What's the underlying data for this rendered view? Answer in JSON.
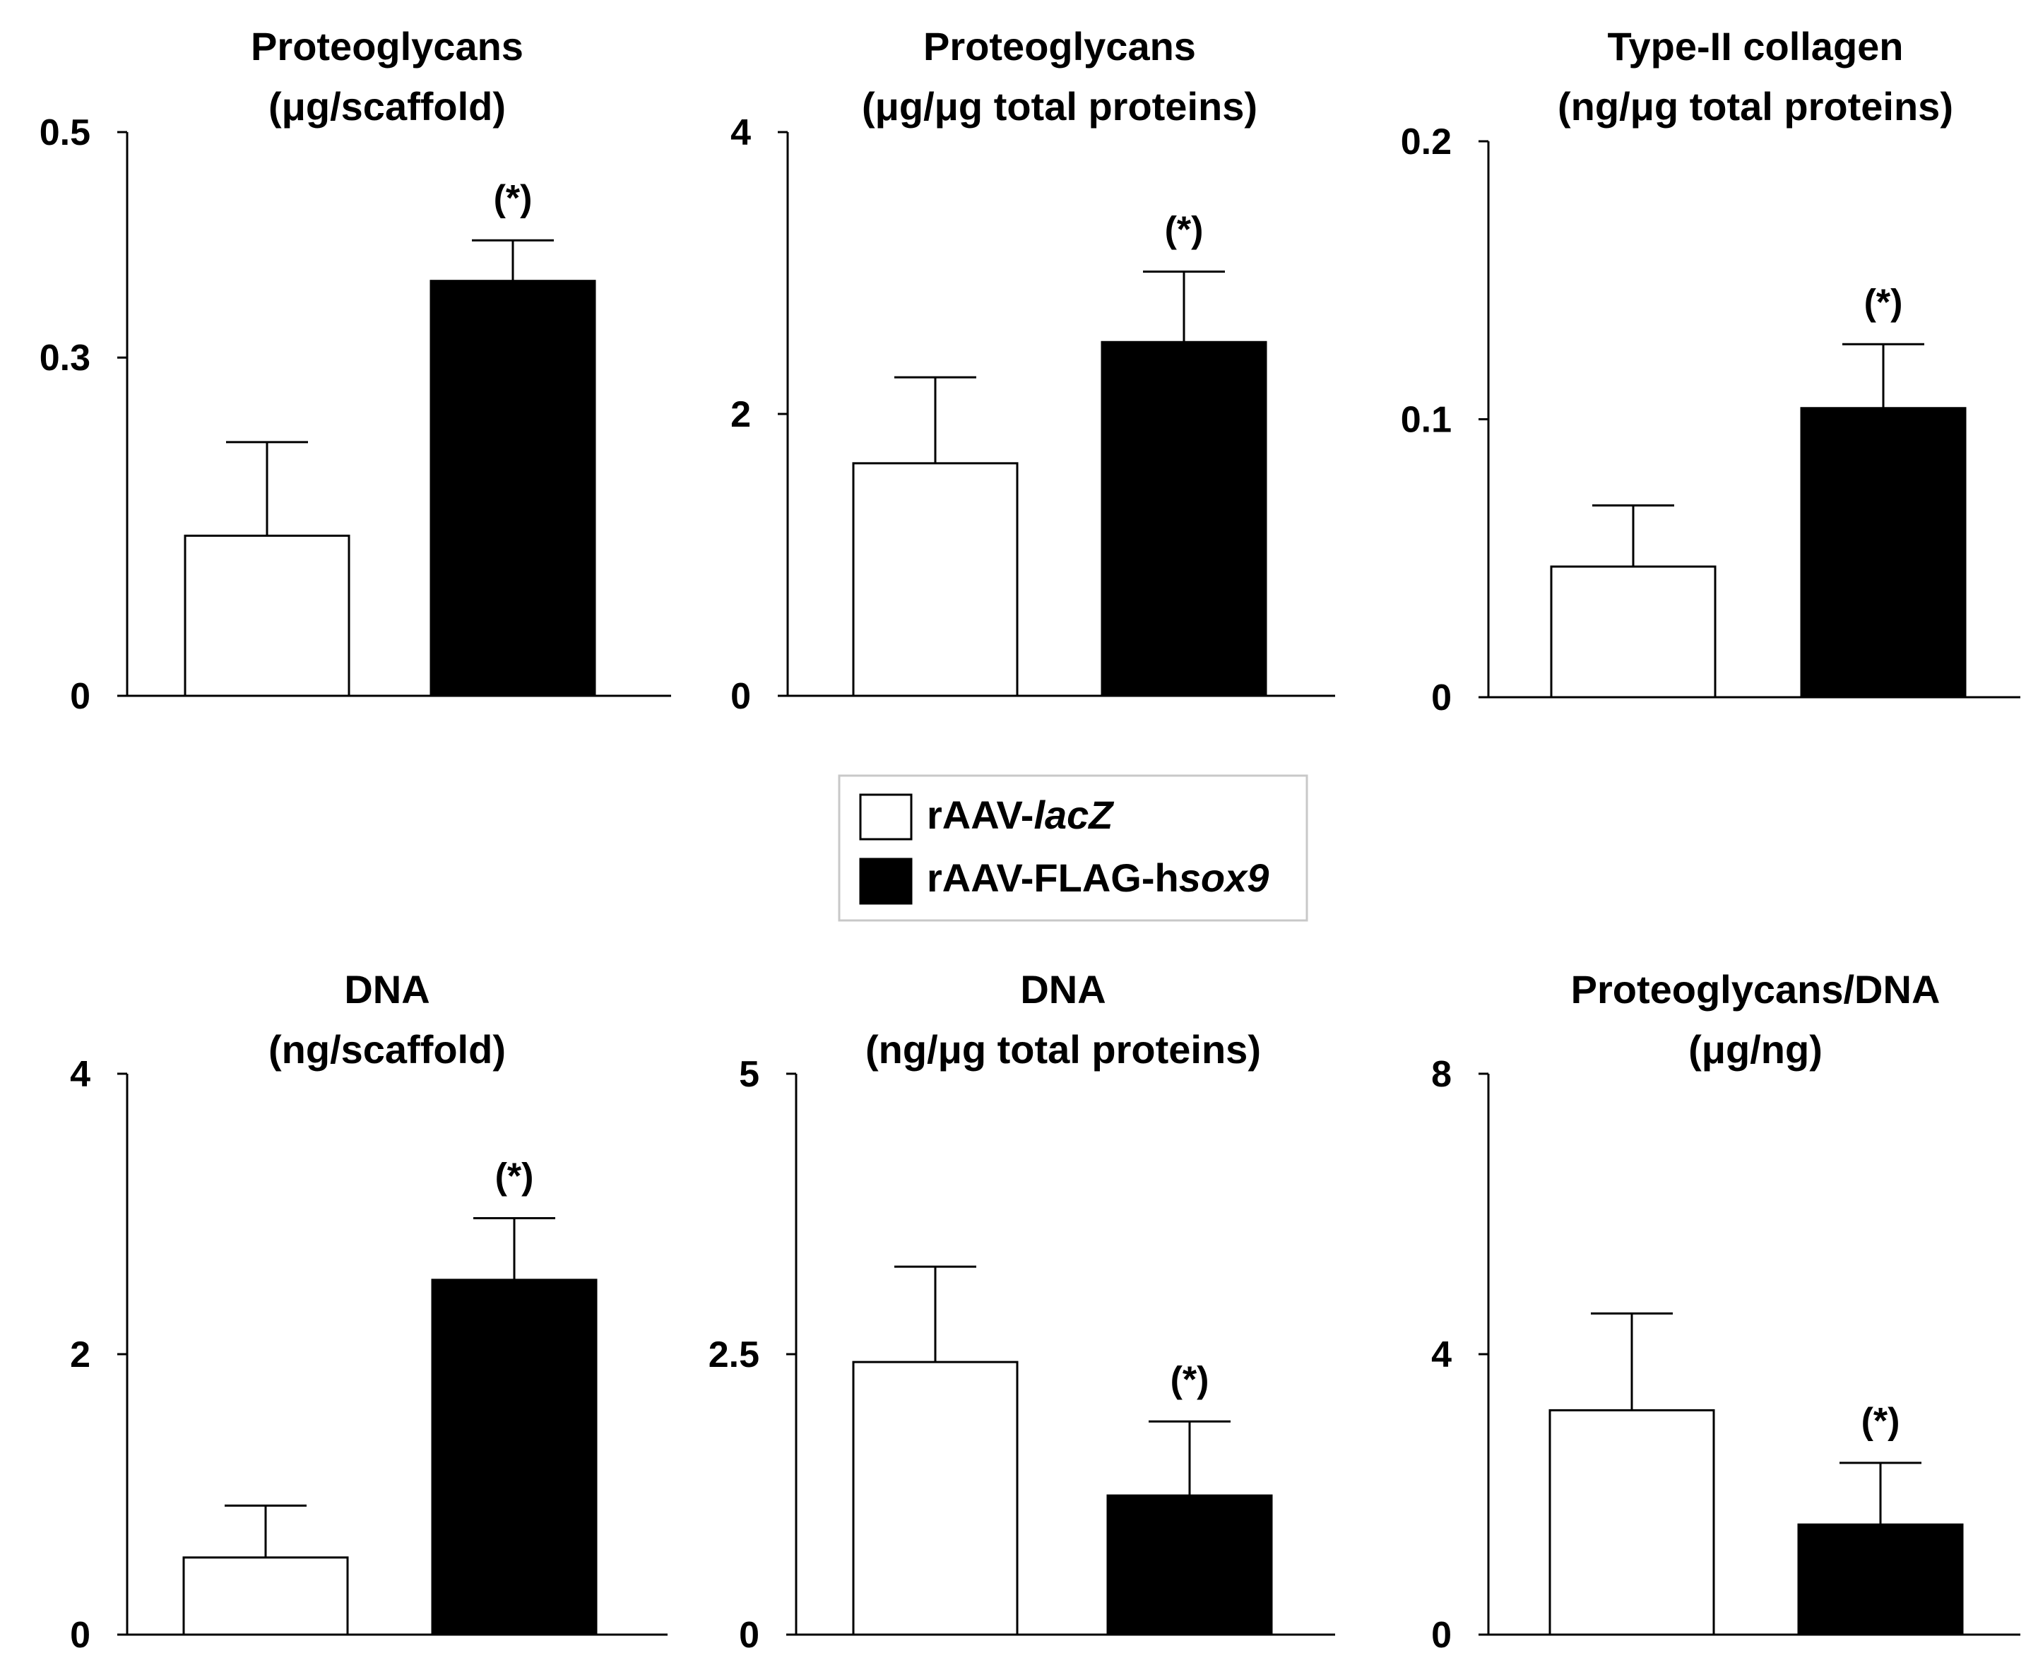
{
  "colors": {
    "white_bar": "#ffffff",
    "black_bar": "#000000",
    "axis": "#000000"
  },
  "legend": {
    "entries": [
      {
        "prefix": "rAAV-",
        "italic": "lacZ",
        "suffix": "",
        "color": "#ffffff"
      },
      {
        "prefix": "rAAV-FLAG-h",
        "italic": "sox9",
        "suffix": "",
        "color": "#000000"
      }
    ]
  },
  "chart_data": [
    {
      "type": "bar",
      "title": [
        "Proteoglycans",
        "(μg/scaffold)"
      ],
      "ylim": [
        0,
        0.5
      ],
      "yticks": [
        0,
        0.3,
        0.5
      ],
      "ytick_labels": [
        "0",
        "0.3",
        "0.5"
      ],
      "categories": [
        "rAAV-lacZ",
        "rAAV-FLAG-hsox9"
      ],
      "values": [
        0.142,
        0.368
      ],
      "errors": [
        0.083,
        0.036
      ],
      "significance": [
        "",
        "(*)"
      ]
    },
    {
      "type": "bar",
      "title": [
        "Proteoglycans",
        "(μg/μg total proteins)"
      ],
      "ylim": [
        0,
        4
      ],
      "yticks": [
        0,
        2,
        4
      ],
      "ytick_labels": [
        "0",
        "2",
        "4"
      ],
      "categories": [
        "rAAV-lacZ",
        "rAAV-FLAG-hsox9"
      ],
      "values": [
        1.65,
        2.51
      ],
      "errors": [
        0.61,
        0.5
      ],
      "significance": [
        "",
        "(*)"
      ]
    },
    {
      "type": "bar",
      "title": [
        "Type-II collagen",
        "(ng/μg total proteins)"
      ],
      "ylim": [
        0,
        0.2
      ],
      "yticks": [
        0,
        0.1,
        0.2
      ],
      "ytick_labels": [
        "0",
        "0.1",
        "0.2"
      ],
      "categories": [
        "rAAV-lacZ",
        "rAAV-FLAG-hsox9"
      ],
      "values": [
        0.047,
        0.104
      ],
      "errors": [
        0.022,
        0.023
      ],
      "significance": [
        "",
        "(*)"
      ]
    },
    {
      "type": "bar",
      "title": [
        "DNA",
        "(ng/scaffold)"
      ],
      "ylim": [
        0,
        4
      ],
      "yticks": [
        0,
        2,
        4
      ],
      "ytick_labels": [
        "0",
        "2",
        "4"
      ],
      "categories": [
        "rAAV-lacZ",
        "rAAV-FLAG-hsox9"
      ],
      "values": [
        0.55,
        2.53
      ],
      "errors": [
        0.37,
        0.44
      ],
      "significance": [
        "",
        "(*)"
      ]
    },
    {
      "type": "bar",
      "title": [
        "DNA",
        "(ng/μg total proteins)"
      ],
      "ylim": [
        0,
        5
      ],
      "yticks": [
        0,
        2.5,
        5
      ],
      "ytick_labels": [
        "0",
        "2.5",
        "5"
      ],
      "categories": [
        "rAAV-lacZ",
        "rAAV-FLAG-hsox9"
      ],
      "values": [
        2.43,
        1.24
      ],
      "errors": [
        0.85,
        0.66
      ],
      "significance": [
        "",
        "(*)"
      ]
    },
    {
      "type": "bar",
      "title": [
        "Proteoglycans/DNA",
        "(μg/ng)"
      ],
      "ylim": [
        0,
        8
      ],
      "yticks": [
        0,
        4,
        8
      ],
      "ytick_labels": [
        "0",
        "4",
        "8"
      ],
      "categories": [
        "rAAV-lacZ",
        "rAAV-FLAG-hsox9"
      ],
      "values": [
        3.2,
        1.57
      ],
      "errors": [
        1.38,
        0.88
      ],
      "significance": [
        "",
        "(*)"
      ]
    }
  ]
}
